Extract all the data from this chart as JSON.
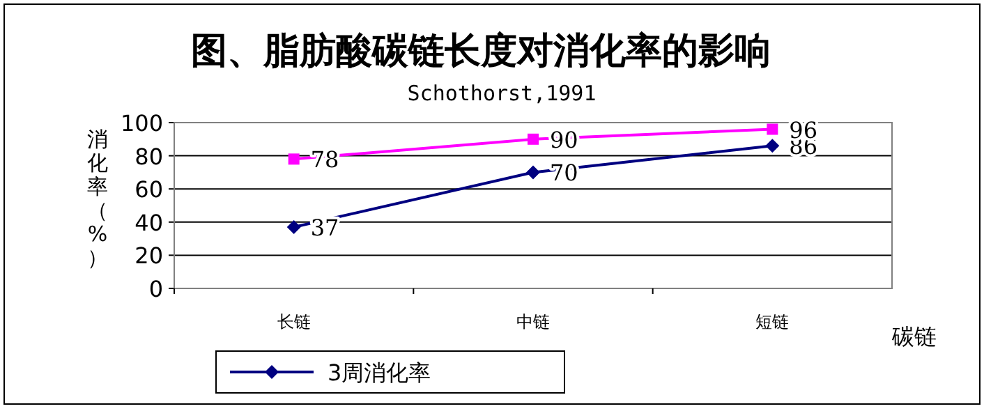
{
  "chart_data": {
    "type": "line",
    "title": "图、脂肪酸碳链长度对消化率的影响",
    "subtitle": "Schothorst,1991",
    "xlabel": "碳链",
    "ylabel": "消化率（%）",
    "categories": [
      "长链",
      "中链",
      "短链"
    ],
    "series": [
      {
        "name": "3周消化率",
        "color": "#000080",
        "marker": "diamond",
        "values": [
          37,
          70,
          86
        ]
      },
      {
        "color": "#ff00ff",
        "marker": "square",
        "values": [
          78,
          90,
          96
        ]
      }
    ],
    "ylim": [
      0,
      100
    ],
    "yticks": [
      0,
      20,
      40,
      60,
      80,
      100
    ],
    "grid": "y",
    "data_labels": true,
    "legend": "bottom"
  }
}
